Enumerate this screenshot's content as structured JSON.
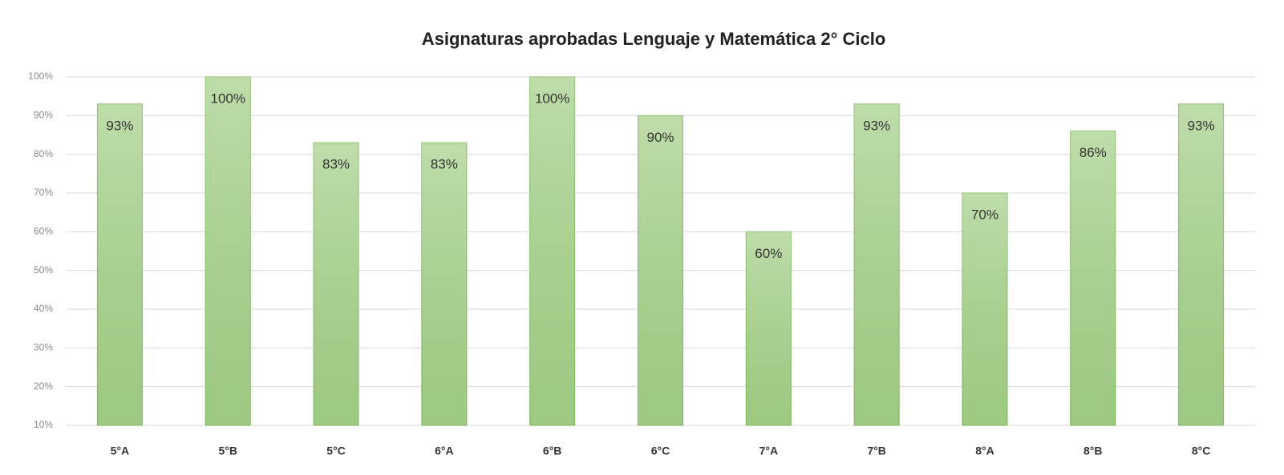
{
  "chart_data": {
    "type": "bar",
    "title": "Asignaturas aprobadas Lenguaje y Matemática 2° Ciclo",
    "categories": [
      "5°A",
      "5°B",
      "5°C",
      "6°A",
      "6°B",
      "6°C",
      "7°A",
      "7°B",
      "8°A",
      "8°B",
      "8°C"
    ],
    "values": [
      93,
      100,
      83,
      83,
      100,
      90,
      60,
      93,
      70,
      86,
      93
    ],
    "value_labels": [
      "93%",
      "100%",
      "83%",
      "83%",
      "100%",
      "90%",
      "60%",
      "93%",
      "70%",
      "86%",
      "93%"
    ],
    "color": "#a9d18e",
    "ylim": [
      10,
      100
    ],
    "yticks": [
      {
        "value": 10,
        "label": "10%"
      },
      {
        "value": 20,
        "label": "20%"
      },
      {
        "value": 30,
        "label": "30%"
      },
      {
        "value": 40,
        "label": "40%"
      },
      {
        "value": 50,
        "label": "50%"
      },
      {
        "value": 60,
        "label": "60%"
      },
      {
        "value": 70,
        "label": "70%"
      },
      {
        "value": 80,
        "label": "80%"
      },
      {
        "value": 90,
        "label": "90%"
      },
      {
        "value": 100,
        "label": "100%"
      }
    ],
    "grid": true
  }
}
